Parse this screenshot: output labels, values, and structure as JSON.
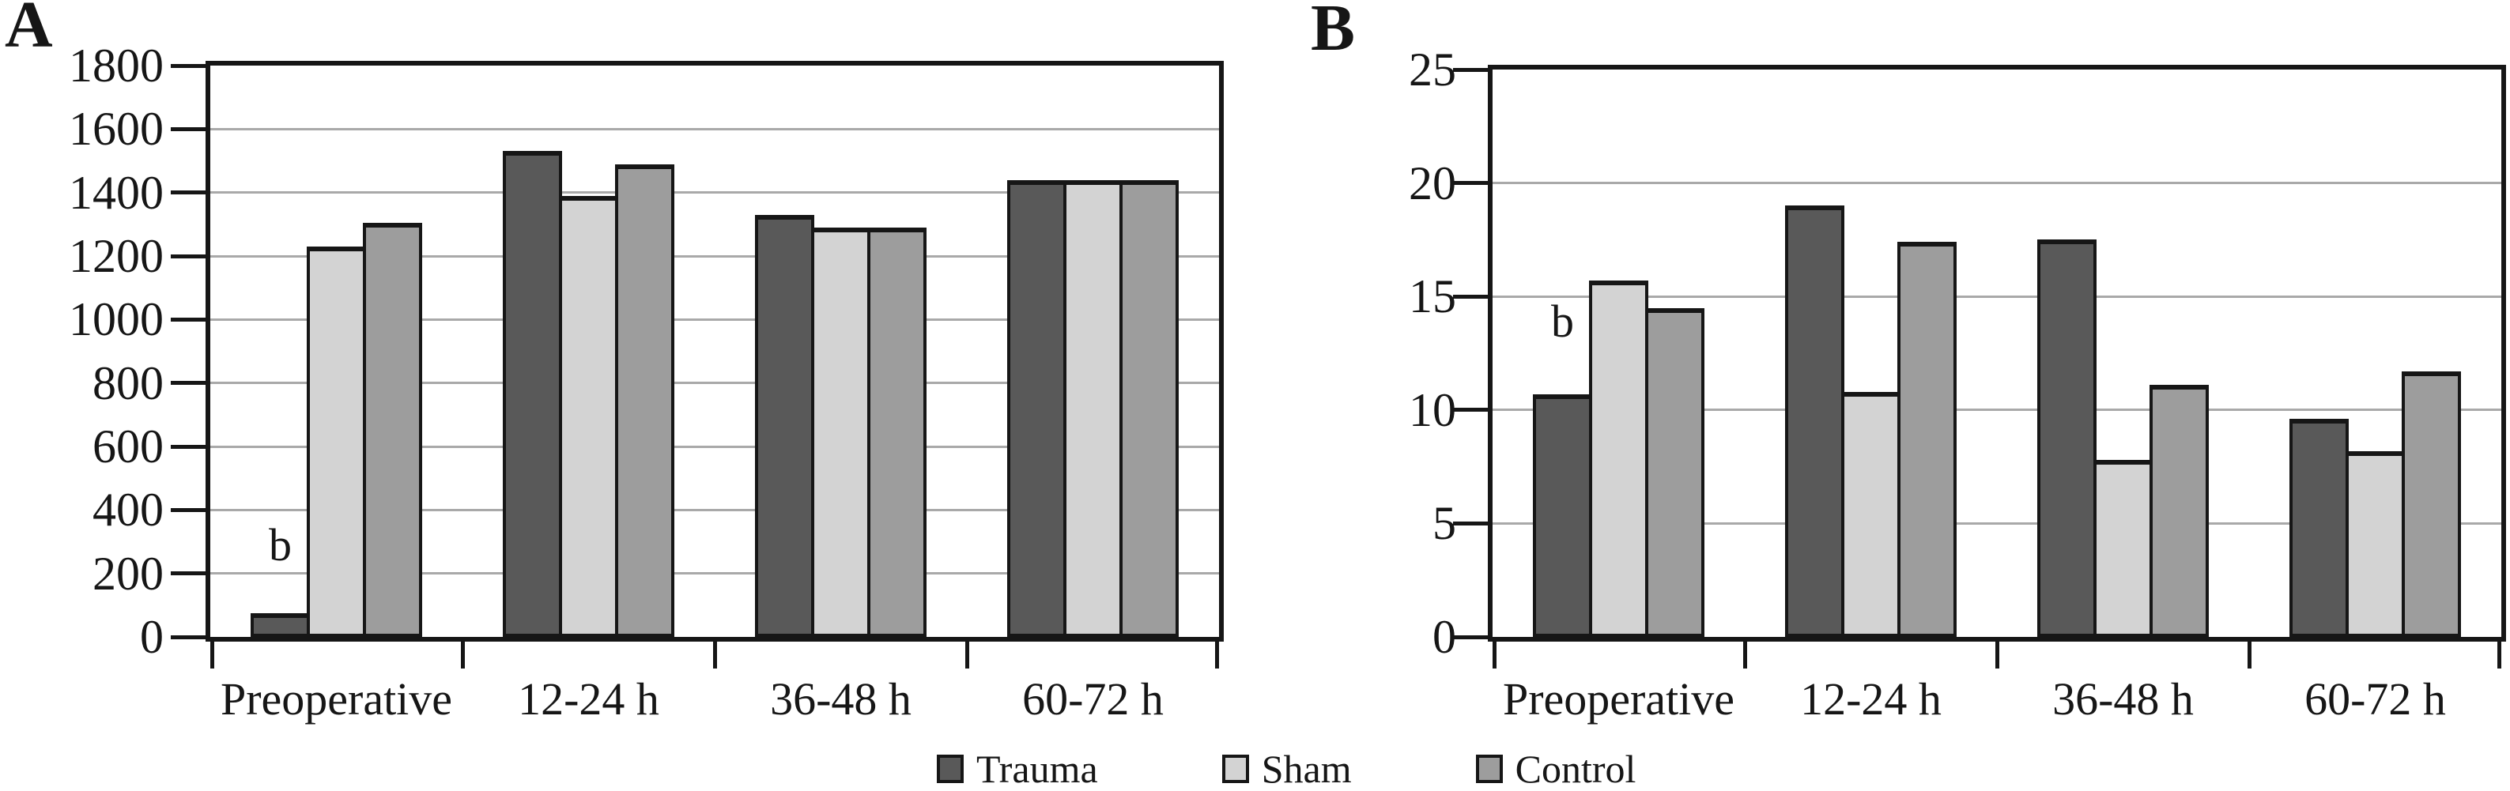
{
  "figure_type": "two-panel grouped bar chart",
  "panels": [
    {
      "label": "A"
    },
    {
      "label": "B"
    }
  ],
  "legend": {
    "position": "bottom-center-shared",
    "items": [
      {
        "label": "Trauma",
        "color": "#595959"
      },
      {
        "label": "Sham",
        "color": "#d3d3d3"
      },
      {
        "label": "Control",
        "color": "#9d9d9d"
      }
    ]
  },
  "colors": {
    "frame": "#161616",
    "gridline": "#a9a9a9",
    "background": "#ffffff"
  },
  "chart_data": [
    {
      "type": "bar",
      "panel_label": "A",
      "title": "",
      "xlabel": "",
      "ylabel": "",
      "categories": [
        "Preoperative",
        "12-24 h",
        "36-48 h",
        "60-72 h"
      ],
      "series": [
        {
          "name": "Trauma",
          "color": "#595959",
          "values": [
            75,
            1530,
            1330,
            1440
          ]
        },
        {
          "name": "Sham",
          "color": "#d3d3d3",
          "values": [
            1230,
            1390,
            1290,
            1440
          ]
        },
        {
          "name": "Control",
          "color": "#9d9d9d",
          "values": [
            1305,
            1490,
            1290,
            1440
          ]
        }
      ],
      "ylim": [
        0,
        1800
      ],
      "ytick_step": 200,
      "yticks": [
        "0",
        "200",
        "400",
        "600",
        "800",
        "1000",
        "1200",
        "1400",
        "1600",
        "1800"
      ],
      "grid": true,
      "annotations": [
        {
          "text": "b",
          "category_index": 0,
          "series_index": 0,
          "y_value": 290
        }
      ]
    },
    {
      "type": "bar",
      "panel_label": "B",
      "title": "",
      "xlabel": "",
      "ylabel": "",
      "categories": [
        "Preoperative",
        "12-24 h",
        "36-48 h",
        "60-72 h"
      ],
      "series": [
        {
          "name": "Trauma",
          "color": "#595959",
          "values": [
            10.7,
            19.0,
            17.5,
            9.6
          ]
        },
        {
          "name": "Sham",
          "color": "#d3d3d3",
          "values": [
            15.7,
            10.8,
            7.8,
            8.2
          ]
        },
        {
          "name": "Control",
          "color": "#9d9d9d",
          "values": [
            14.5,
            17.4,
            11.1,
            11.7
          ]
        }
      ],
      "ylim": [
        0,
        25
      ],
      "ytick_step": 5,
      "yticks": [
        "0",
        "5",
        "10",
        "15",
        "20",
        "25"
      ],
      "grid": true,
      "annotations": [
        {
          "text": "b",
          "category_index": 0,
          "series_index": 0,
          "y_value": 13.9
        }
      ]
    }
  ]
}
